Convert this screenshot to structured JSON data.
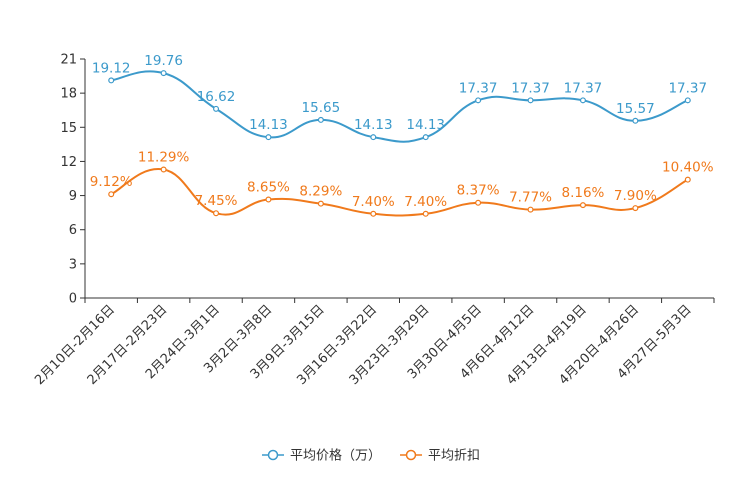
{
  "chart_data": {
    "type": "line",
    "title": "",
    "xlabel": "",
    "ylabel": "",
    "ylim": [
      0,
      21
    ],
    "yticks": [
      0,
      3,
      6,
      9,
      12,
      15,
      18,
      21
    ],
    "grid": false,
    "legend_position": "bottom",
    "categories": [
      "2月10日-2月16日",
      "2月17日-2月23日",
      "2月24日-3月1日",
      "3月2日-3月8日",
      "3月9日-3月15日",
      "3月16日-3月22日",
      "3月23日-3月29日",
      "3月30日-4月5日",
      "4月6日-4月12日",
      "4月13日-4月19日",
      "4月20日-4月26日",
      "4月27日-5月3日"
    ],
    "series": [
      {
        "name": "平均价格（万）",
        "color": "#3c9acb",
        "values": [
          19.12,
          19.76,
          16.62,
          14.13,
          15.65,
          14.13,
          14.13,
          17.37,
          17.37,
          17.37,
          15.57,
          17.37
        ],
        "labels": [
          "19.12",
          "19.76",
          "16.62",
          "14.13",
          "15.65",
          "14.13",
          "14.13",
          "17.37",
          "17.37",
          "17.37",
          "15.57",
          "17.37"
        ]
      },
      {
        "name": "平均折扣",
        "color": "#f07a1c",
        "values": [
          9.12,
          11.29,
          7.45,
          8.65,
          8.29,
          7.4,
          7.4,
          8.37,
          7.77,
          8.16,
          7.9,
          10.4
        ],
        "labels": [
          "9.12%",
          "11.29%",
          "7.45%",
          "8.65%",
          "8.29%",
          "7.40%",
          "7.40%",
          "8.37%",
          "7.77%",
          "8.16%",
          "7.90%",
          "10.40%"
        ]
      }
    ]
  }
}
